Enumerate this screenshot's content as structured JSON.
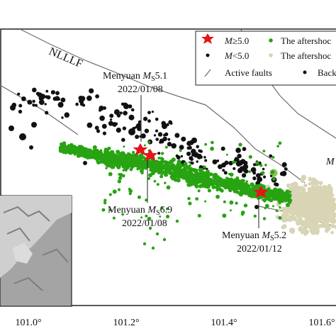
{
  "map": {
    "fault_name": "NLLLF",
    "x_ticks": [
      "101.0°",
      "101.2°",
      "101.4°",
      "101.6°"
    ],
    "events": [
      {
        "name": "Menyuan",
        "mag_symbol": "M",
        "mag_sub": "S",
        "mag": "5.1",
        "date": "2022/01/08"
      },
      {
        "name": "Menyuan",
        "mag_symbol": "M",
        "mag_sub": "S",
        "mag": "6.9",
        "date": "2022/01/08"
      },
      {
        "name": "Menyuan",
        "mag_symbol": "M",
        "mag_sub": "S",
        "mag": "5.2",
        "date": "2022/01/12"
      }
    ],
    "edge_label": "M"
  },
  "legend": {
    "items": [
      {
        "symbol": "red-star",
        "m": "M",
        "cond": "≥5.0"
      },
      {
        "symbol": "green-dot",
        "text": "The aftershoc"
      },
      {
        "symbol": "black-dot",
        "m": "M",
        "cond": "<5.0"
      },
      {
        "symbol": "beige-dot",
        "text": "The aftershoc"
      },
      {
        "symbol": "fault-line",
        "text": "Active faults"
      },
      {
        "symbol": "black-dot-small",
        "text": "Back"
      }
    ]
  },
  "colors": {
    "green": "#28a312",
    "beige": "#d8d4b4",
    "black": "#111111",
    "red": "#e3151b",
    "fault": "#6d6d6d",
    "inset_bg": "#9c9c9c"
  }
}
